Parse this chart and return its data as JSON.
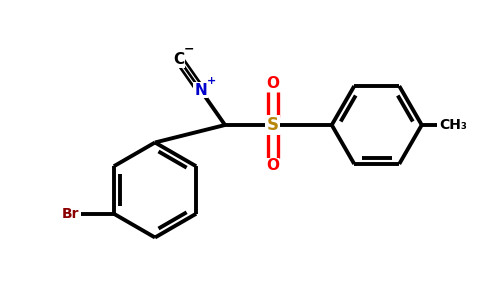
{
  "bg_color": "#ffffff",
  "bond_color": "#000000",
  "bond_width": 2.8,
  "br_color": "#8B0000",
  "n_color": "#0000CD",
  "o_color": "#FF0000",
  "s_color": "#B8860B",
  "figsize": [
    4.84,
    3.0
  ],
  "dpi": 100,
  "xlim": [
    0,
    9.68
  ],
  "ylim": [
    0,
    6.0
  ]
}
